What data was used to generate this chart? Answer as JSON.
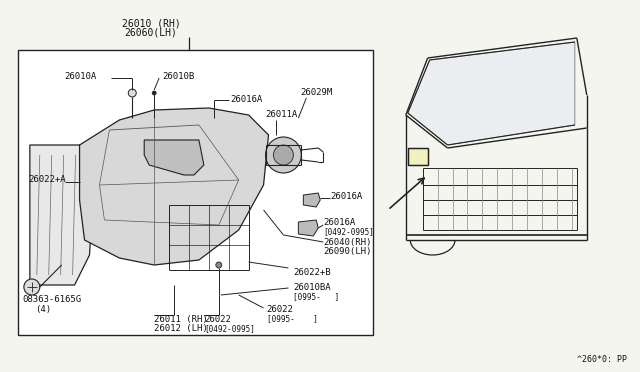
{
  "bg_color": "#f5f5f0",
  "box_color": "#ffffff",
  "line_color": "#222222",
  "title_bottom": "^260*0: PP",
  "parts": {
    "main_label_top": "26010 (RH)\n26060(LH)",
    "label_26011A_1": "26010A",
    "label_26010B": "26010B",
    "label_26016A_top": "26016A",
    "label_26029M": "26029M",
    "label_26011A_2": "26011A",
    "label_26022A": "26022+A",
    "label_26016A_mid": "26016A",
    "label_26016A_lo": "26016A\n[0492-0995]",
    "label_26040": "26040(RH)\n26090(LH)",
    "label_26022B": "26022+B",
    "label_26010BA": "26010BA\n[0995-   ]",
    "label_08363": "08363-6165G\n    (4)",
    "label_26022_1": "26022\n[0492-0995]",
    "label_26011_rh": "26011 (RH)\n26012 (LH)",
    "label_26022_2": "26022\n[0995-   ]"
  }
}
